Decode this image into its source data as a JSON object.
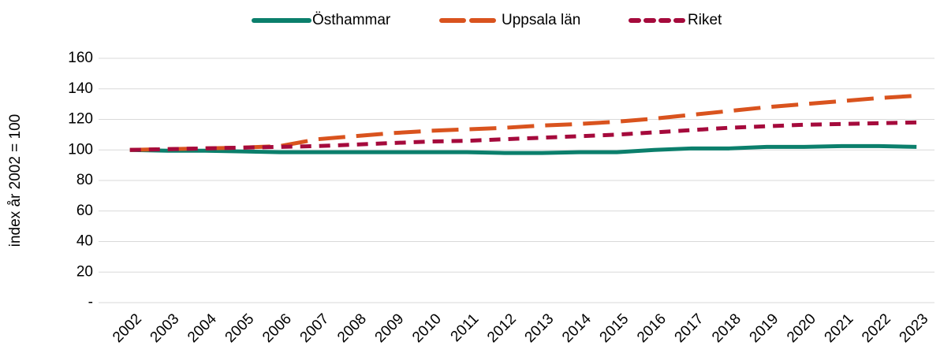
{
  "chart_data": {
    "type": "line",
    "y_label": "index år 2002 = 100",
    "categories": [
      "2002",
      "2003",
      "2004",
      "2005",
      "2006",
      "2007",
      "2008",
      "2009",
      "2010",
      "2011",
      "2012",
      "2013",
      "2014",
      "2015",
      "2016",
      "2017",
      "2018",
      "2019",
      "2020",
      "2021",
      "2022",
      "2023"
    ],
    "series": [
      {
        "name": "Östhammar",
        "color": "#0b7f6c",
        "line_style": "solid",
        "values": [
          100,
          99.5,
          99.5,
          99,
          98.5,
          98.5,
          98.5,
          98.5,
          98.5,
          98.5,
          98,
          98,
          98.5,
          98.5,
          100,
          101,
          101,
          102,
          102,
          102.5,
          102.5,
          102
        ]
      },
      {
        "name": "Uppsala län",
        "color": "#d9531e",
        "line_style": "long-dash",
        "values": [
          100,
          100.5,
          101,
          101.5,
          102.5,
          107,
          109,
          111,
          112.5,
          113.5,
          114.5,
          116,
          117,
          118.5,
          120.5,
          123,
          125.5,
          128,
          130,
          132,
          134,
          135.5
        ]
      },
      {
        "name": "Riket",
        "color": "#a50a3c",
        "line_style": "short-dash",
        "values": [
          100,
          100.5,
          101,
          101.5,
          102,
          102.5,
          103.5,
          104.5,
          105.5,
          106,
          107,
          108,
          109,
          110,
          111.5,
          113,
          114.5,
          115.5,
          116.5,
          117,
          117.5,
          118
        ]
      }
    ],
    "ylim": [
      0,
      160
    ],
    "yticks": [
      {
        "value": 0,
        "label": "-"
      },
      20,
      40,
      60,
      80,
      100,
      120,
      140,
      160
    ],
    "grid": true,
    "legend": "top"
  }
}
